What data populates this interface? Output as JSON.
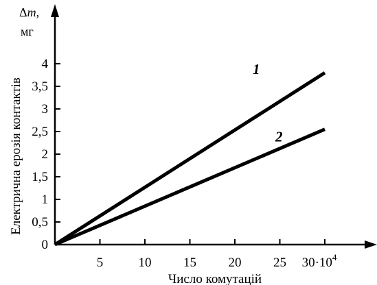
{
  "chart_data": {
    "type": "line",
    "xlabel": "Число комутацій",
    "ylabel": "Електрична ерозія контактів",
    "y_quantity": "Δm,",
    "y_quantity_symbol": "m",
    "y_units": "мг",
    "x_tick_labels": [
      "5",
      "10",
      "15",
      "20",
      "25",
      "30·10"
    ],
    "x_tick_values": [
      5,
      10,
      15,
      20,
      25,
      30
    ],
    "x_exponent": "4",
    "y_tick_labels": [
      "0",
      "0,5",
      "1",
      "1,5",
      "2",
      "2,5",
      "3",
      "3,5",
      "4"
    ],
    "y_tick_values": [
      0,
      0.5,
      1,
      1.5,
      2,
      2.5,
      3,
      3.5,
      4
    ],
    "xlim": [
      0,
      30
    ],
    "ylim": [
      0,
      4
    ],
    "grid": false,
    "series": [
      {
        "name": "1",
        "x": [
          0,
          30
        ],
        "y": [
          0,
          3.8
        ]
      },
      {
        "name": "2",
        "x": [
          0,
          30
        ],
        "y": [
          0,
          2.55
        ]
      }
    ]
  }
}
